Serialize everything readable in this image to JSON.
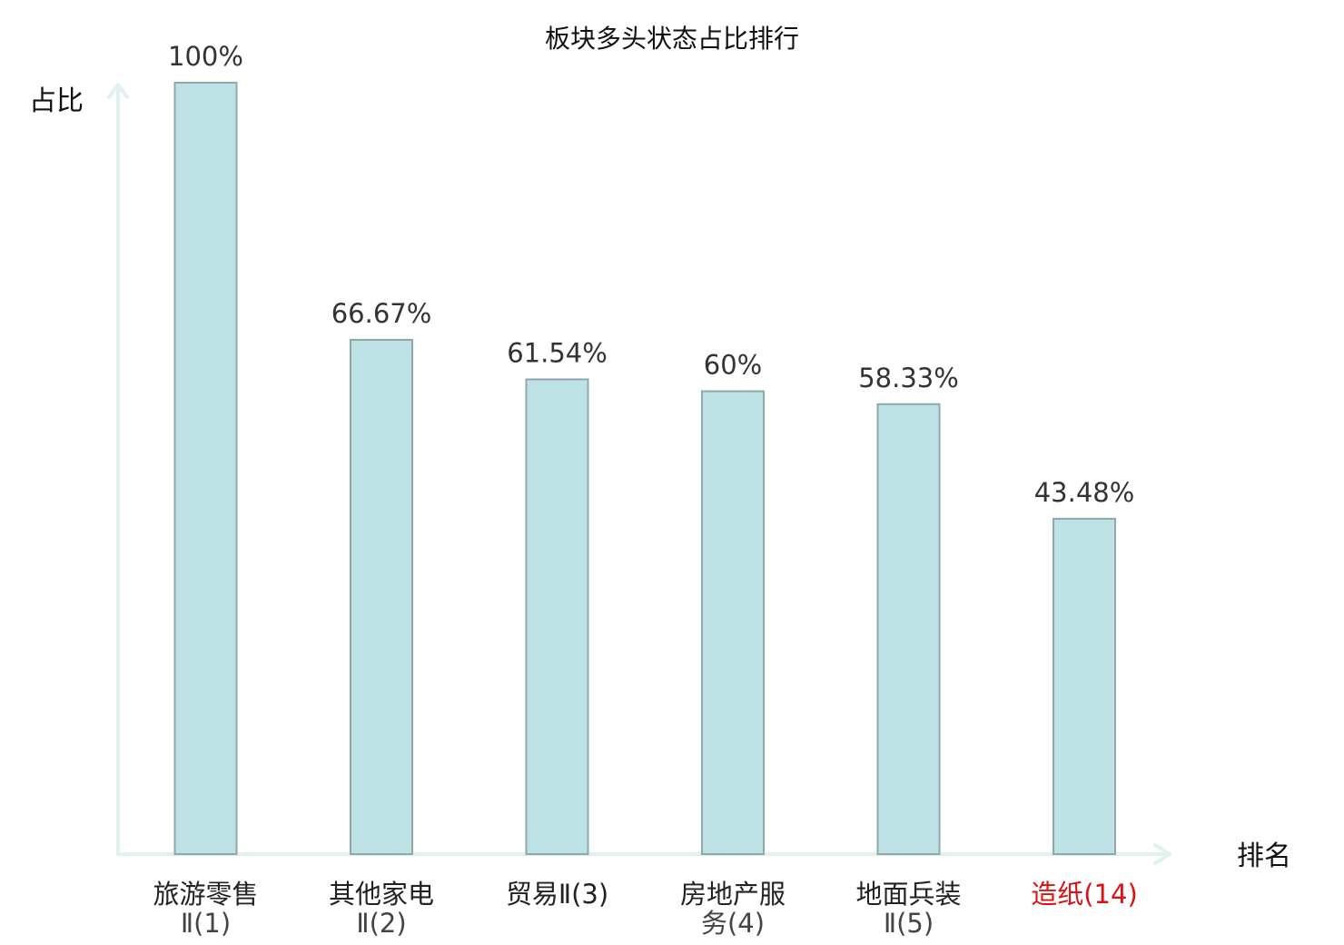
{
  "chart_data": {
    "type": "bar",
    "title": "板块多头状态占比排行",
    "ylabel": "占比",
    "xlabel": "排名",
    "ylim": [
      0,
      100
    ],
    "grid": false,
    "legend": "none",
    "bar_color": "#bde1e4",
    "bar_border_color": "#8fa9ab",
    "axis_color": "#dff2f0",
    "highlight_color": "#dd1111",
    "categories": [
      {
        "lines": [
          "旅游零售",
          "Ⅱ(1)"
        ],
        "highlight": false
      },
      {
        "lines": [
          "其他家电",
          "Ⅱ(2)"
        ],
        "highlight": false
      },
      {
        "lines": [
          "贸易Ⅱ(3)"
        ],
        "highlight": false
      },
      {
        "lines": [
          "房地产服",
          "务(4)"
        ],
        "highlight": false
      },
      {
        "lines": [
          "地面兵装",
          "Ⅱ(5)"
        ],
        "highlight": false
      },
      {
        "lines": [
          "造纸(14)"
        ],
        "highlight": true
      }
    ],
    "values": [
      100,
      66.67,
      61.54,
      60,
      58.33,
      43.48
    ],
    "value_labels": [
      "100%",
      "66.67%",
      "61.54%",
      "60%",
      "58.33%",
      "43.48%"
    ]
  }
}
